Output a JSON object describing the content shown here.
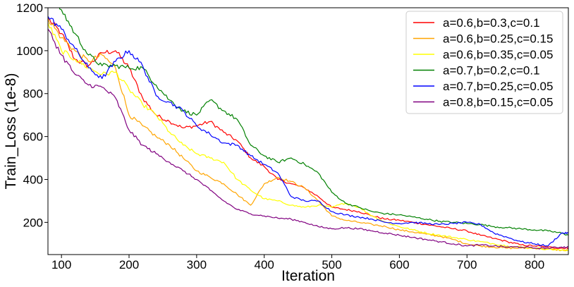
{
  "chart_data": {
    "type": "line",
    "title": "",
    "xlabel": "Iteration",
    "ylabel": "Train_Loss (1e-8)",
    "xlim": [
      80,
      850
    ],
    "ylim": [
      50,
      1200
    ],
    "xticks": [
      100,
      200,
      300,
      400,
      500,
      600,
      700,
      800
    ],
    "yticks": [
      200,
      400,
      600,
      800,
      1000,
      1200
    ],
    "grid": false,
    "legend": "top-right",
    "series": [
      {
        "name": "a=0.6,b=0.3,c=0.1",
        "color": "#ff0000",
        "x": [
          80,
          100,
          120,
          140,
          160,
          180,
          200,
          220,
          240,
          260,
          280,
          300,
          320,
          340,
          360,
          380,
          400,
          420,
          440,
          460,
          480,
          500,
          520,
          540,
          560,
          580,
          600,
          620,
          640,
          660,
          680,
          700,
          720,
          740,
          760,
          780,
          800,
          820,
          840,
          850
        ],
        "y": [
          1150,
          1080,
          960,
          930,
          990,
          1000,
          920,
          780,
          700,
          670,
          640,
          650,
          670,
          620,
          580,
          500,
          460,
          400,
          380,
          360,
          320,
          270,
          260,
          250,
          230,
          215,
          210,
          200,
          190,
          180,
          170,
          160,
          140,
          125,
          110,
          95,
          90,
          85,
          80,
          80
        ]
      },
      {
        "name": "a=0.6,b=0.25,c=0.15",
        "color": "#ffa500",
        "x": [
          80,
          100,
          120,
          140,
          160,
          180,
          200,
          220,
          240,
          260,
          280,
          300,
          320,
          340,
          360,
          380,
          400,
          420,
          440,
          460,
          480,
          500,
          520,
          540,
          560,
          580,
          600,
          620,
          640,
          660,
          680,
          700,
          720,
          740,
          760,
          780,
          800,
          820,
          840,
          850
        ],
        "y": [
          1150,
          1060,
          1000,
          950,
          980,
          920,
          700,
          650,
          600,
          560,
          500,
          440,
          410,
          380,
          330,
          280,
          380,
          410,
          390,
          360,
          300,
          230,
          210,
          200,
          190,
          180,
          165,
          155,
          145,
          135,
          120,
          100,
          90,
          85,
          80,
          80,
          80,
          75,
          70,
          70
        ]
      },
      {
        "name": "a=0.6,b=0.35,c=0.05",
        "color": "#ffff00",
        "x": [
          80,
          100,
          120,
          140,
          160,
          180,
          200,
          220,
          240,
          260,
          280,
          300,
          320,
          340,
          360,
          380,
          400,
          420,
          440,
          460,
          480,
          500,
          520,
          540,
          560,
          580,
          600,
          620,
          640,
          660,
          680,
          700,
          720,
          740,
          760,
          780,
          800,
          820,
          840,
          850
        ],
        "y": [
          1130,
          1000,
          960,
          920,
          890,
          900,
          820,
          750,
          700,
          620,
          560,
          520,
          500,
          480,
          400,
          350,
          310,
          300,
          280,
          270,
          280,
          270,
          290,
          270,
          230,
          200,
          180,
          165,
          150,
          140,
          130,
          120,
          110,
          100,
          90,
          85,
          80,
          75,
          70,
          70
        ]
      },
      {
        "name": "a=0.7,b=0.2,c=0.1",
        "color": "#008000",
        "x": [
          80,
          100,
          120,
          140,
          160,
          180,
          200,
          220,
          240,
          260,
          280,
          300,
          320,
          340,
          360,
          380,
          400,
          420,
          440,
          460,
          480,
          500,
          520,
          540,
          560,
          580,
          600,
          620,
          640,
          660,
          680,
          700,
          720,
          740,
          760,
          780,
          800,
          820,
          840,
          850
        ],
        "y": [
          1250,
          1190,
          1080,
          980,
          930,
          930,
          920,
          920,
          840,
          770,
          720,
          700,
          770,
          720,
          680,
          560,
          510,
          480,
          500,
          470,
          430,
          340,
          290,
          270,
          250,
          240,
          235,
          225,
          215,
          205,
          200,
          195,
          190,
          180,
          175,
          170,
          165,
          160,
          150,
          140
        ]
      },
      {
        "name": "a=0.7,b=0.25,c=0.05",
        "color": "#0000ff",
        "x": [
          80,
          100,
          120,
          140,
          160,
          180,
          200,
          220,
          240,
          260,
          280,
          300,
          320,
          340,
          360,
          380,
          400,
          420,
          440,
          460,
          480,
          500,
          520,
          540,
          560,
          580,
          600,
          620,
          640,
          660,
          680,
          700,
          720,
          740,
          760,
          780,
          800,
          820,
          840,
          850
        ],
        "y": [
          1160,
          1100,
          1010,
          920,
          870,
          950,
          1000,
          930,
          790,
          760,
          720,
          650,
          610,
          570,
          560,
          510,
          470,
          430,
          320,
          300,
          300,
          250,
          235,
          225,
          215,
          200,
          195,
          200,
          195,
          190,
          195,
          200,
          190,
          150,
          130,
          110,
          100,
          90,
          150,
          150
        ]
      },
      {
        "name": "a=0.8,b=0.15,c=0.05",
        "color": "#800080",
        "x": [
          80,
          100,
          120,
          140,
          160,
          180,
          200,
          220,
          240,
          260,
          280,
          300,
          320,
          340,
          360,
          380,
          400,
          420,
          440,
          460,
          480,
          500,
          520,
          540,
          560,
          580,
          600,
          620,
          640,
          660,
          680,
          700,
          720,
          740,
          760,
          780,
          800,
          820,
          840,
          850
        ],
        "y": [
          1100,
          980,
          890,
          840,
          830,
          780,
          630,
          560,
          520,
          480,
          440,
          400,
          350,
          300,
          260,
          240,
          230,
          220,
          215,
          200,
          180,
          170,
          175,
          170,
          160,
          150,
          140,
          130,
          120,
          110,
          100,
          90,
          95,
          90,
          85,
          85,
          80,
          80,
          85,
          85
        ]
      }
    ]
  }
}
